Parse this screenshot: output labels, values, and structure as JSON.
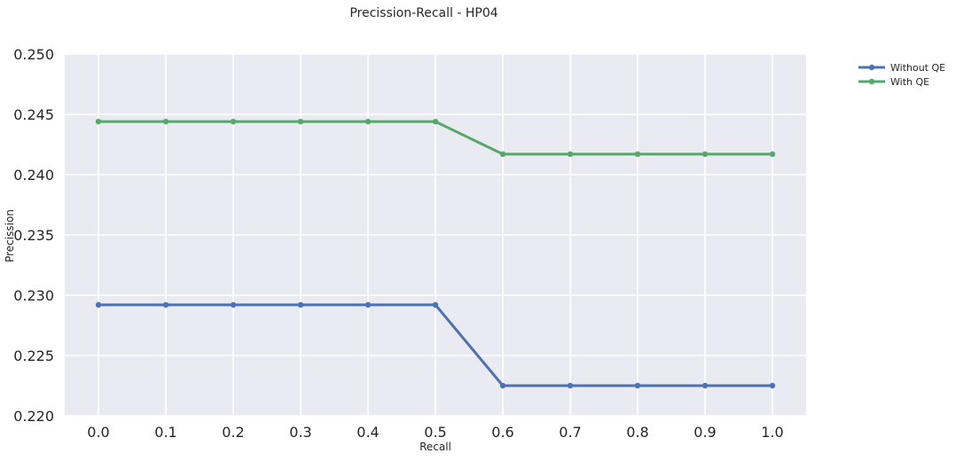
{
  "chart_data": {
    "type": "line",
    "title": "Precission-Recall - HP04",
    "xlabel": "Recall",
    "ylabel": "Precission",
    "x": [
      0.0,
      0.1,
      0.2,
      0.3,
      0.4,
      0.5,
      0.6,
      0.7,
      0.8,
      0.9,
      1.0
    ],
    "x_tick_labels": [
      "0.0",
      "0.1",
      "0.2",
      "0.3",
      "0.4",
      "0.5",
      "0.6",
      "0.7",
      "0.8",
      "0.9",
      "1.0"
    ],
    "y_ticks": [
      0.22,
      0.225,
      0.23,
      0.235,
      0.24,
      0.245,
      0.25
    ],
    "y_tick_labels": [
      "0.220",
      "0.225",
      "0.230",
      "0.235",
      "0.240",
      "0.245",
      "0.250"
    ],
    "xlim": [
      -0.05,
      1.05
    ],
    "ylim": [
      0.22,
      0.25
    ],
    "grid": true,
    "legend_position": "outside-top-right",
    "series": [
      {
        "name": "Without QE",
        "color": "#4c72b0",
        "marker": "circle",
        "values": [
          0.2292,
          0.2292,
          0.2292,
          0.2292,
          0.2292,
          0.2292,
          0.2225,
          0.2225,
          0.2225,
          0.2225,
          0.2225
        ]
      },
      {
        "name": "With QE",
        "color": "#55a868",
        "marker": "circle",
        "values": [
          0.2444,
          0.2444,
          0.2444,
          0.2444,
          0.2444,
          0.2444,
          0.2417,
          0.2417,
          0.2417,
          0.2417,
          0.2417
        ]
      }
    ]
  },
  "colors": {
    "plot_background": "#eaeaf2",
    "grid": "#ffffff",
    "text": "#262626"
  }
}
